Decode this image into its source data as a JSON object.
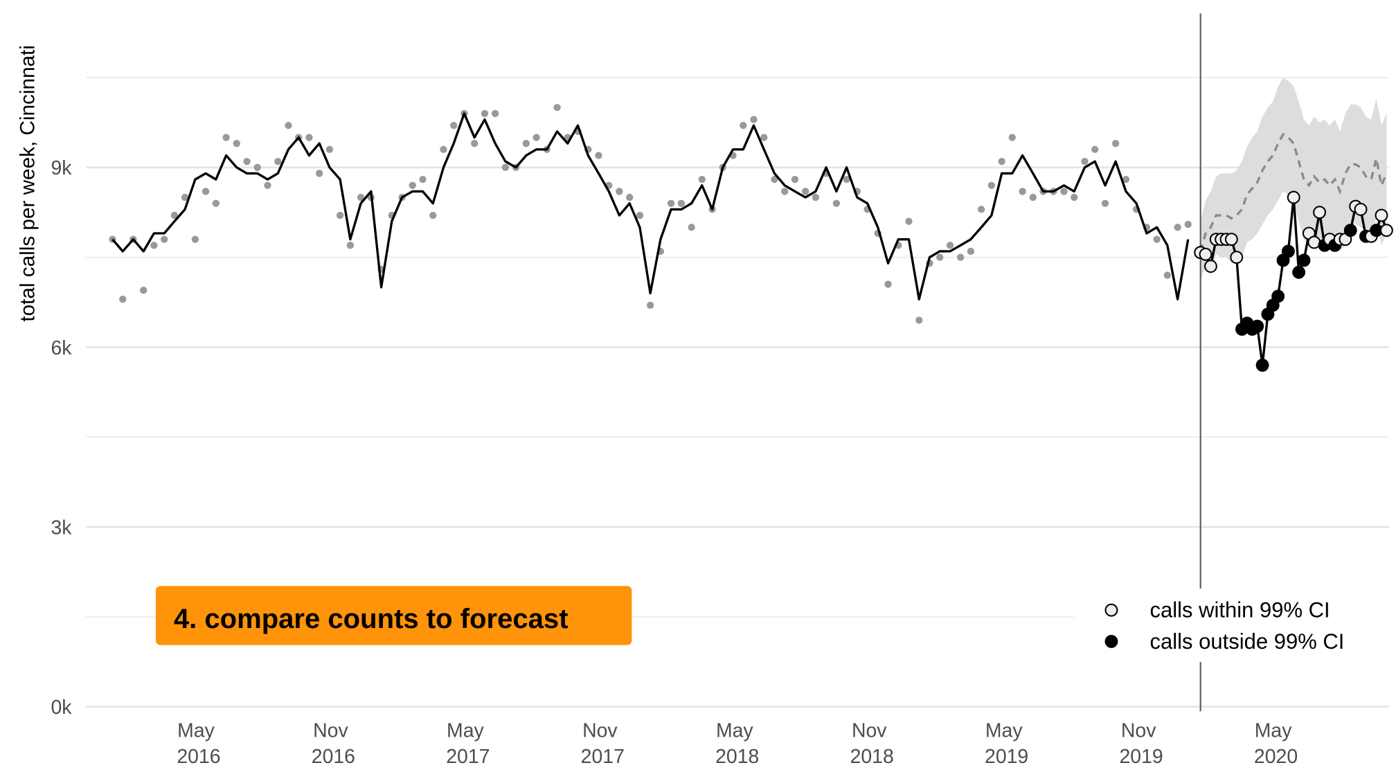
{
  "chart_data": {
    "type": "line",
    "y_label": "total calls per week, Cincinnati",
    "annotation": "4. compare counts to forecast",
    "xlim": [
      2015.885,
      2020.749
    ],
    "xticks": [
      {
        "value": 2016.33,
        "label": "May 2016"
      },
      {
        "value": 2016.83,
        "label": "Nov 2016"
      },
      {
        "value": 2017.33,
        "label": "May 2017"
      },
      {
        "value": 2017.83,
        "label": "Nov 2017"
      },
      {
        "value": 2018.33,
        "label": "May 2018"
      },
      {
        "value": 2018.83,
        "label": "Nov 2018"
      },
      {
        "value": 2019.33,
        "label": "May 2019"
      },
      {
        "value": 2019.83,
        "label": "Nov 2019"
      },
      {
        "value": 2020.33,
        "label": "May 2020"
      }
    ],
    "ylim": [
      -75,
      11570
    ],
    "yticks": [
      {
        "value": 0,
        "label": "0k"
      },
      {
        "value": 3000,
        "label": "3k"
      },
      {
        "value": 6000,
        "label": "6k"
      },
      {
        "value": 9000,
        "label": "9k"
      }
    ],
    "minor_grid": [
      1500,
      4500,
      7500,
      10500
    ],
    "grid": true,
    "cutoff": 2020.05,
    "line_color": "#000000",
    "point_color": "#999999",
    "band_color": "#dddddd",
    "mean_color": "#8a8a8a",
    "history": {
      "x": [
        2016.01,
        2016.048,
        2016.087,
        2016.125,
        2016.164,
        2016.202,
        2016.24,
        2016.279,
        2016.317,
        2016.356,
        2016.394,
        2016.432,
        2016.471,
        2016.509,
        2016.548,
        2016.586,
        2016.624,
        2016.663,
        2016.701,
        2016.74,
        2016.778,
        2016.816,
        2016.855,
        2016.893,
        2016.932,
        2016.97,
        2017.008,
        2017.047,
        2017.085,
        2017.124,
        2017.162,
        2017.2,
        2017.239,
        2017.277,
        2017.316,
        2017.354,
        2017.392,
        2017.431,
        2017.469,
        2017.508,
        2017.546,
        2017.584,
        2017.623,
        2017.661,
        2017.7,
        2017.738,
        2017.776,
        2017.815,
        2017.853,
        2017.892,
        2017.93,
        2017.968,
        2018.007,
        2018.045,
        2018.084,
        2018.122,
        2018.16,
        2018.199,
        2018.237,
        2018.276,
        2018.314,
        2018.352,
        2018.391,
        2018.429,
        2018.468,
        2018.506,
        2018.544,
        2018.583,
        2018.621,
        2018.66,
        2018.698,
        2018.736,
        2018.775,
        2018.813,
        2018.852,
        2018.89,
        2018.928,
        2018.967,
        2019.005,
        2019.044,
        2019.082,
        2019.12,
        2019.159,
        2019.197,
        2019.236,
        2019.274,
        2019.312,
        2019.351,
        2019.389,
        2019.428,
        2019.466,
        2019.504,
        2019.543,
        2019.581,
        2019.62,
        2019.658,
        2019.696,
        2019.735,
        2019.773,
        2019.812,
        2019.85,
        2019.888,
        2019.927,
        2019.965,
        2020.004
      ],
      "line": [
        7800,
        7600,
        7800,
        7600,
        7900,
        7900,
        8100,
        8300,
        8800,
        8900,
        8800,
        9200,
        9000,
        8900,
        8900,
        8800,
        8900,
        9300,
        9500,
        9200,
        9400,
        9000,
        8800,
        7800,
        8400,
        8600,
        7000,
        8100,
        8500,
        8600,
        8600,
        8400,
        9000,
        9400,
        9900,
        9500,
        9800,
        9400,
        9100,
        9000,
        9200,
        9300,
        9300,
        9600,
        9400,
        9700,
        9200,
        8900,
        8600,
        8200,
        8400,
        8000,
        6900,
        7800,
        8300,
        8300,
        8400,
        8700,
        8300,
        9000,
        9300,
        9300,
        9700,
        9300,
        8900,
        8700,
        8600,
        8500,
        8600,
        9000,
        8600,
        9000,
        8500,
        8400,
        8000,
        7400,
        7800,
        7800,
        6800,
        7500,
        7600,
        7600,
        7700,
        7800,
        8000,
        8200,
        8900,
        8900,
        9200,
        8900,
        8600,
        8600,
        8700,
        8600,
        9000,
        9100,
        8700,
        9100,
        8600,
        8400,
        7900,
        8000,
        7700,
        6800,
        7800
      ],
      "points": [
        7800,
        6800,
        7800,
        6950,
        7700,
        7800,
        8200,
        8500,
        7800,
        8600,
        8400,
        9500,
        9400,
        9100,
        9000,
        8700,
        9100,
        9700,
        9500,
        9500,
        8900,
        9300,
        8200,
        7700,
        8500,
        8500,
        7300,
        8200,
        8500,
        8700,
        8800,
        8200,
        9300,
        9700,
        9900,
        9400,
        9900,
        9900,
        9000,
        9000,
        9400,
        9500,
        9300,
        10000,
        9500,
        9600,
        9300,
        9200,
        8700,
        8600,
        8500,
        8200,
        6700,
        7600,
        8400,
        8400,
        8000,
        8800,
        8300,
        9000,
        9200,
        9700,
        9800,
        9500,
        8800,
        8600,
        8800,
        8600,
        8500,
        8900,
        8400,
        8800,
        8600,
        8300,
        7900,
        7050,
        7700,
        8100,
        6450,
        7400,
        7500,
        7700,
        7500,
        7600,
        8300,
        8700,
        9100,
        9500,
        8600,
        8500,
        8600,
        8600,
        8600,
        8500,
        9100,
        9300,
        8400,
        9400,
        8800,
        8300,
        8000,
        7800,
        7200,
        8000,
        8050
      ]
    },
    "forecast": {
      "x": [
        2020.05,
        2020.069,
        2020.088,
        2020.108,
        2020.127,
        2020.146,
        2020.165,
        2020.184,
        2020.204,
        2020.223,
        2020.242,
        2020.261,
        2020.28,
        2020.3,
        2020.319,
        2020.338,
        2020.357,
        2020.376,
        2020.396,
        2020.415,
        2020.434,
        2020.453,
        2020.472,
        2020.492,
        2020.511,
        2020.53,
        2020.549,
        2020.568,
        2020.588,
        2020.607,
        2020.626,
        2020.645,
        2020.664,
        2020.684,
        2020.703,
        2020.722,
        2020.741
      ],
      "values": [
        7580,
        7550,
        7350,
        7800,
        7800,
        7800,
        7800,
        7500,
        6300,
        6400,
        6300,
        6350,
        5700,
        6550,
        6700,
        6850,
        7450,
        7600,
        8500,
        7250,
        7450,
        7900,
        7750,
        8250,
        7700,
        7800,
        7700,
        7800,
        7800,
        7950,
        8350,
        8300,
        7850,
        7850,
        7950,
        8200,
        7950
      ],
      "mean": [
        7600,
        7900,
        8000,
        8200,
        8200,
        8200,
        8150,
        8200,
        8300,
        8550,
        8650,
        8750,
        8950,
        9100,
        9200,
        9400,
        9550,
        9500,
        9400,
        9100,
        8800,
        8700,
        8850,
        8750,
        8800,
        8700,
        8800,
        8600,
        8900,
        9050,
        9050,
        9000,
        8850,
        8800,
        9150,
        8700,
        8900
      ],
      "lower": [
        7100,
        7350,
        7200,
        7550,
        7500,
        7500,
        7400,
        7450,
        7500,
        7750,
        7800,
        7900,
        8050,
        8200,
        8300,
        8450,
        8600,
        8550,
        8450,
        8100,
        7800,
        7700,
        7700,
        7750,
        7800,
        7700,
        7800,
        7600,
        7700,
        8050,
        8050,
        8000,
        7950,
        7800,
        8150,
        7700,
        7900
      ],
      "upper": [
        8100,
        8450,
        8600,
        8850,
        8900,
        8900,
        8900,
        8950,
        9100,
        9350,
        9500,
        9600,
        9850,
        10000,
        10100,
        10350,
        10500,
        10450,
        10350,
        10100,
        9800,
        9700,
        9850,
        9750,
        9800,
        9700,
        9800,
        9600,
        9900,
        10050,
        10050,
        10000,
        9850,
        9800,
        10150,
        9700,
        9900
      ],
      "within": [
        true,
        true,
        true,
        true,
        true,
        true,
        true,
        true,
        false,
        false,
        false,
        false,
        false,
        false,
        false,
        false,
        false,
        false,
        true,
        false,
        false,
        true,
        true,
        true,
        false,
        true,
        false,
        true,
        true,
        false,
        true,
        true,
        false,
        true,
        false,
        true,
        true
      ],
      "within_fill": "#eeeeee",
      "outside_fill": "#000000"
    },
    "legend": [
      {
        "label": "calls within 99% CI",
        "within": true
      },
      {
        "label": "calls outside 99% CI",
        "within": false
      }
    ]
  }
}
